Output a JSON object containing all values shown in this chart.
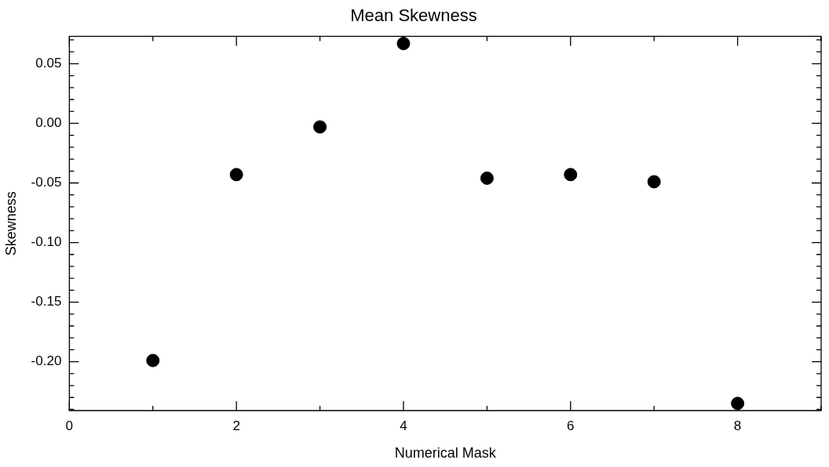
{
  "chart_data": {
    "type": "scatter",
    "title": "Mean Skewness",
    "xlabel": "Numerical Mask",
    "ylabel": "Skewness",
    "x": [
      1,
      2,
      3,
      4,
      5,
      6,
      7,
      8
    ],
    "values": [
      -0.199,
      -0.043,
      -0.003,
      0.067,
      -0.046,
      -0.043,
      -0.049,
      -0.235
    ],
    "color": "#000000",
    "marker": "circle",
    "grid": false,
    "legend": false,
    "xlim": [
      0,
      9
    ],
    "xticks": [
      0,
      {
        "value": 1,
        "label": null
      },
      2,
      {
        "value": 3,
        "label": null
      },
      4,
      {
        "value": 5,
        "label": null
      },
      6,
      {
        "value": 7,
        "label": null
      },
      8,
      {
        "value": 9,
        "label": null
      }
    ],
    "ylim": [
      -0.241,
      0.073
    ],
    "yticks": [
      {
        "value": -0.24,
        "label": null
      },
      {
        "value": -0.23,
        "label": null
      },
      {
        "value": -0.22,
        "label": null
      },
      {
        "value": -0.21,
        "label": null
      },
      {
        "value": -0.2,
        "label": "-0.20"
      },
      {
        "value": -0.19,
        "label": null
      },
      {
        "value": -0.18,
        "label": null
      },
      {
        "value": -0.17,
        "label": null
      },
      {
        "value": -0.16,
        "label": null
      },
      {
        "value": -0.15,
        "label": "-0.15"
      },
      {
        "value": -0.14,
        "label": null
      },
      {
        "value": -0.13,
        "label": null
      },
      {
        "value": -0.12,
        "label": null
      },
      {
        "value": -0.11,
        "label": null
      },
      {
        "value": -0.1,
        "label": "-0.10"
      },
      {
        "value": -0.09,
        "label": null
      },
      {
        "value": -0.08,
        "label": null
      },
      {
        "value": -0.07,
        "label": null
      },
      {
        "value": -0.06,
        "label": null
      },
      {
        "value": -0.05,
        "label": "-0.05"
      },
      {
        "value": -0.04,
        "label": null
      },
      {
        "value": -0.03,
        "label": null
      },
      {
        "value": -0.02,
        "label": null
      },
      {
        "value": -0.01,
        "label": null
      },
      {
        "value": 0,
        "label": "0.00"
      },
      {
        "value": 0.01,
        "label": null
      },
      {
        "value": 0.02,
        "label": null
      },
      {
        "value": 0.03,
        "label": null
      },
      {
        "value": 0.04,
        "label": null
      },
      {
        "value": 0.05,
        "label": "0.05"
      },
      {
        "value": 0.06,
        "label": null
      },
      {
        "value": 0.07,
        "label": null
      }
    ]
  }
}
